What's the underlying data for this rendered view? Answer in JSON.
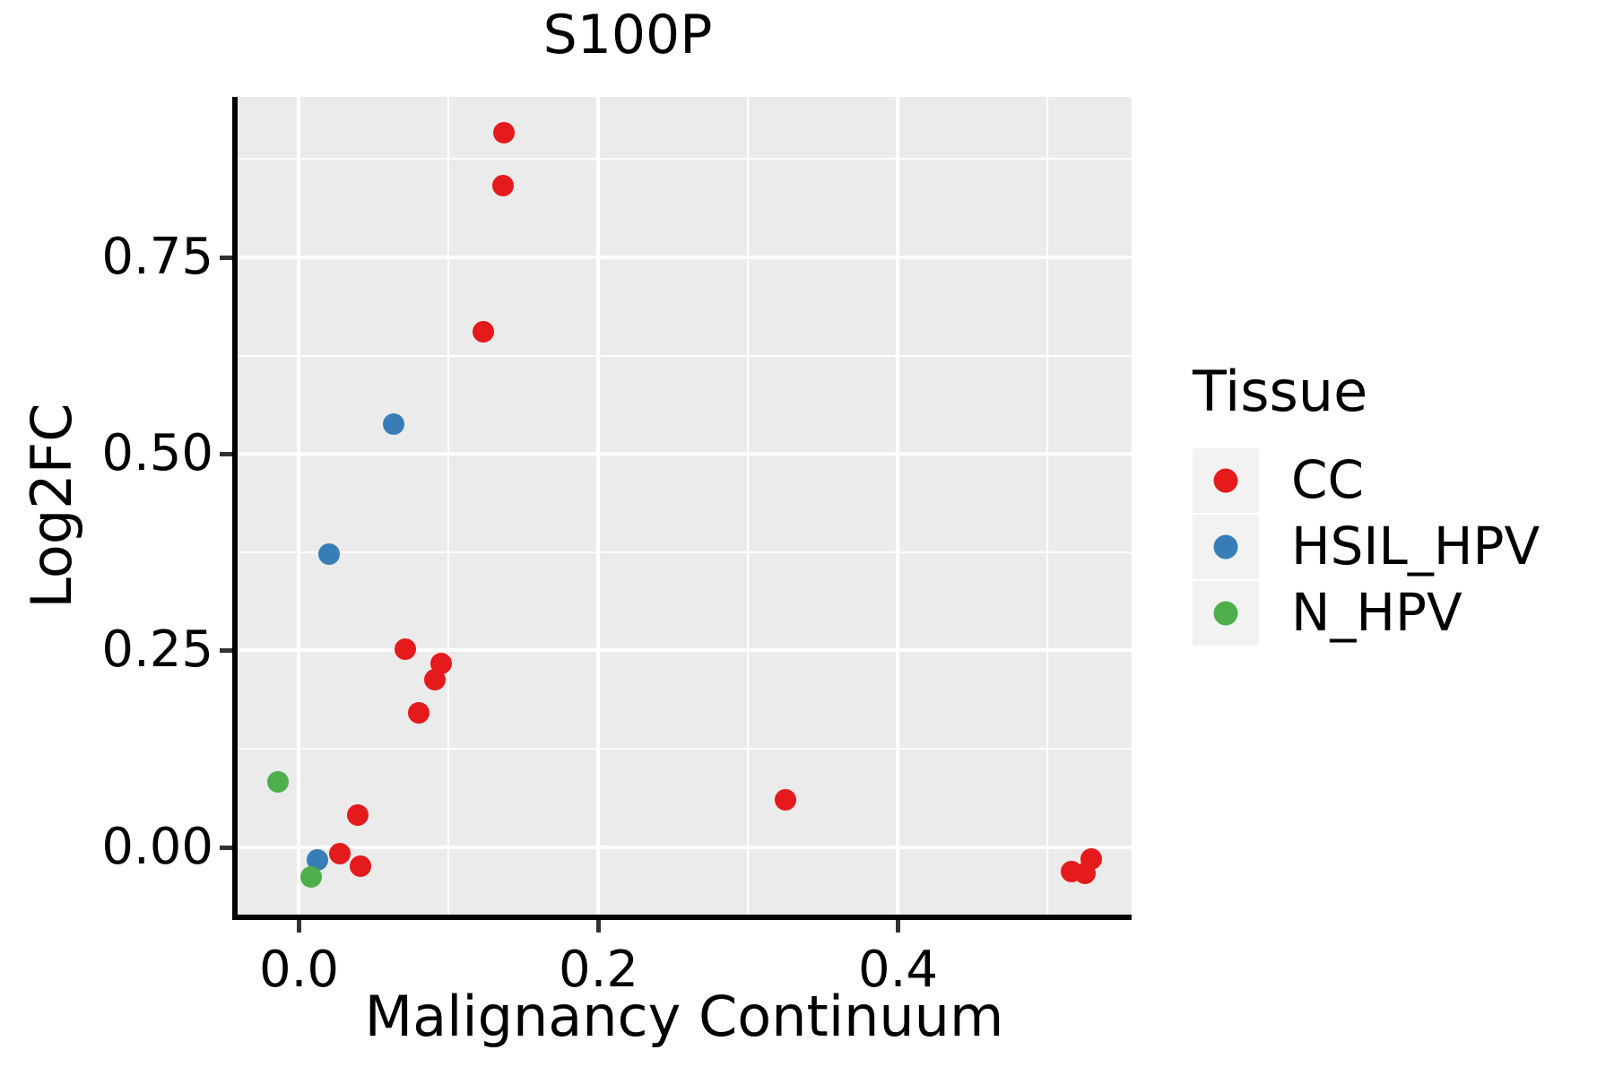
{
  "chart_data": {
    "type": "scatter",
    "title": "S100P",
    "xlabel": "Malignancy Continuum",
    "ylabel": "Log2FC",
    "xlim": [
      -0.041,
      0.556
    ],
    "ylim": [
      -0.086,
      0.954
    ],
    "grid": true,
    "panel_bg": "#EBEBEB",
    "grid_color": "#FFFFFF",
    "x_ticks": {
      "values": [
        0.0,
        0.2,
        0.4
      ],
      "labels": [
        "0.0",
        "0.2",
        "0.4"
      ],
      "minor": [
        0.1,
        0.3,
        0.5
      ]
    },
    "y_ticks": {
      "values": [
        0.0,
        0.25,
        0.5,
        0.75
      ],
      "labels": [
        "0.00",
        "0.25",
        "0.50",
        "0.75"
      ],
      "minor": [
        0.125,
        0.375,
        0.625,
        0.875
      ]
    },
    "legend": {
      "title": "Tissue",
      "position": "right",
      "key_fill": "#F2F2F2",
      "entries": [
        {
          "label": "CC",
          "color": "#E41A1C"
        },
        {
          "label": "HSIL_HPV",
          "color": "#377EB8"
        },
        {
          "label": "N_HPV",
          "color": "#4DAF4A"
        }
      ]
    },
    "series": [
      {
        "name": "CC",
        "color": "#E41A1C",
        "points": [
          [
            0.137,
            0.908
          ],
          [
            0.136,
            0.841
          ],
          [
            0.123,
            0.655
          ],
          [
            0.071,
            0.251
          ],
          [
            0.095,
            0.233
          ],
          [
            0.091,
            0.213
          ],
          [
            0.08,
            0.171
          ],
          [
            0.325,
            0.06
          ],
          [
            0.039,
            0.041
          ],
          [
            0.027,
            -0.009
          ],
          [
            0.041,
            -0.024
          ],
          [
            0.516,
            -0.031
          ],
          [
            0.525,
            -0.033
          ],
          [
            0.529,
            -0.015
          ]
        ]
      },
      {
        "name": "HSIL_HPV",
        "color": "#377EB8",
        "points": [
          [
            0.063,
            0.538
          ],
          [
            0.02,
            0.372
          ],
          [
            0.012,
            -0.017
          ]
        ]
      },
      {
        "name": "N_HPV",
        "color": "#4DAF4A",
        "points": [
          [
            -0.014,
            0.083
          ],
          [
            0.008,
            -0.038
          ]
        ]
      }
    ]
  }
}
